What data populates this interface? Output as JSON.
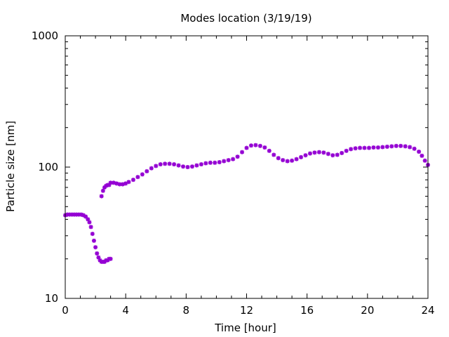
{
  "chart_data": {
    "type": "scatter",
    "title": "Modes location (3/19/19)",
    "xlabel": "Time [hour]",
    "ylabel": "Particle size [nm]",
    "xlim": [
      0,
      24
    ],
    "ylim": [
      10,
      1000
    ],
    "yscale": "log",
    "xticks": [
      "0",
      "4",
      "8",
      "12",
      "16",
      "20",
      "24"
    ],
    "yticks": [
      "10",
      "100",
      "1000"
    ],
    "grid": false,
    "legend": "none",
    "series": [
      {
        "color": "#9400D3",
        "marker": "star",
        "points": [
          [
            0.0,
            43
          ],
          [
            0.15,
            43.5
          ],
          [
            0.3,
            43.5
          ],
          [
            0.45,
            43.5
          ],
          [
            0.6,
            43.5
          ],
          [
            0.75,
            43.5
          ],
          [
            0.9,
            43.5
          ],
          [
            1.05,
            43.5
          ],
          [
            1.2,
            43
          ],
          [
            1.35,
            42
          ],
          [
            1.5,
            40
          ],
          [
            1.6,
            38
          ],
          [
            1.7,
            35
          ],
          [
            1.8,
            31
          ],
          [
            1.9,
            27.5
          ],
          [
            2.0,
            24.5
          ],
          [
            2.1,
            22
          ],
          [
            2.2,
            20.5
          ],
          [
            2.3,
            19.5
          ],
          [
            2.4,
            19
          ],
          [
            2.5,
            19
          ],
          [
            2.6,
            19
          ],
          [
            2.7,
            19.5
          ],
          [
            2.8,
            19.5
          ],
          [
            2.9,
            20
          ],
          [
            3.0,
            20
          ],
          [
            2.4,
            60
          ],
          [
            2.5,
            66
          ],
          [
            2.6,
            70
          ],
          [
            2.7,
            72
          ],
          [
            2.8,
            73
          ],
          [
            2.9,
            73
          ],
          [
            3.0,
            76
          ],
          [
            3.2,
            76
          ],
          [
            3.4,
            75
          ],
          [
            3.6,
            74
          ],
          [
            3.8,
            74
          ],
          [
            4.0,
            75
          ],
          [
            4.2,
            77
          ],
          [
            4.5,
            80
          ],
          [
            4.8,
            84
          ],
          [
            5.1,
            88
          ],
          [
            5.4,
            93
          ],
          [
            5.7,
            98
          ],
          [
            6.0,
            102
          ],
          [
            6.3,
            105
          ],
          [
            6.6,
            106
          ],
          [
            6.9,
            106
          ],
          [
            7.2,
            105
          ],
          [
            7.5,
            103
          ],
          [
            7.8,
            101
          ],
          [
            8.1,
            100
          ],
          [
            8.4,
            101
          ],
          [
            8.7,
            103
          ],
          [
            9.0,
            105
          ],
          [
            9.3,
            107
          ],
          [
            9.6,
            108
          ],
          [
            9.9,
            108
          ],
          [
            10.2,
            109
          ],
          [
            10.5,
            111
          ],
          [
            10.8,
            113
          ],
          [
            11.1,
            115
          ],
          [
            11.4,
            120
          ],
          [
            11.7,
            130
          ],
          [
            12.0,
            140
          ],
          [
            12.3,
            146
          ],
          [
            12.6,
            147
          ],
          [
            12.9,
            145
          ],
          [
            13.2,
            141
          ],
          [
            13.5,
            133
          ],
          [
            13.8,
            124
          ],
          [
            14.1,
            117
          ],
          [
            14.4,
            113
          ],
          [
            14.7,
            111
          ],
          [
            15.0,
            112
          ],
          [
            15.3,
            115
          ],
          [
            15.6,
            119
          ],
          [
            15.9,
            123
          ],
          [
            16.2,
            127
          ],
          [
            16.5,
            129
          ],
          [
            16.8,
            130
          ],
          [
            17.1,
            129
          ],
          [
            17.4,
            126
          ],
          [
            17.7,
            123
          ],
          [
            18.0,
            124
          ],
          [
            18.3,
            128
          ],
          [
            18.6,
            133
          ],
          [
            18.9,
            137
          ],
          [
            19.2,
            139
          ],
          [
            19.5,
            140
          ],
          [
            19.8,
            140
          ],
          [
            20.1,
            140
          ],
          [
            20.4,
            141
          ],
          [
            20.7,
            141
          ],
          [
            21.0,
            142
          ],
          [
            21.3,
            143
          ],
          [
            21.6,
            144
          ],
          [
            21.9,
            145
          ],
          [
            22.2,
            145
          ],
          [
            22.5,
            144
          ],
          [
            22.8,
            142
          ],
          [
            23.1,
            138
          ],
          [
            23.4,
            131
          ],
          [
            23.6,
            122
          ],
          [
            23.8,
            112
          ],
          [
            24.0,
            104
          ]
        ]
      }
    ]
  }
}
